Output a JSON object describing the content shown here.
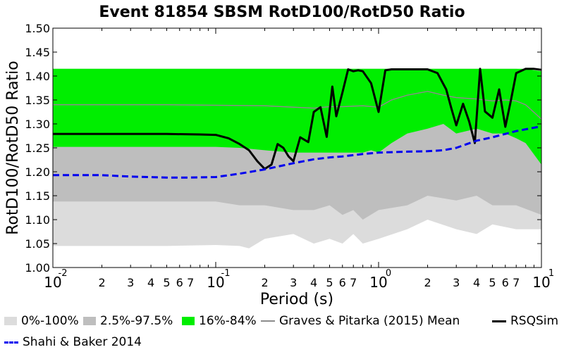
{
  "chart_data": {
    "type": "area",
    "title": "Event 81854 SBSM RotD100/RotD50 Ratio",
    "xlabel": "Period (s)",
    "ylabel": "RotD100/RotD50 Ratio",
    "xscale": "log",
    "xlim": [
      0.01,
      10
    ],
    "ylim": [
      1.0,
      1.5
    ],
    "yticks": [
      "1.00",
      "1.05",
      "1.10",
      "1.15",
      "1.20",
      "1.25",
      "1.30",
      "1.35",
      "1.40",
      "1.45",
      "1.50"
    ],
    "xtick_decades": [
      {
        "value": 0.01,
        "base": "10",
        "exp": "-2"
      },
      {
        "value": 0.1,
        "base": "10",
        "exp": "-1"
      },
      {
        "value": 1,
        "base": "10",
        "exp": "0"
      },
      {
        "value": 10,
        "base": "10",
        "exp": "1"
      }
    ],
    "xtick_minor_labels": [
      "2",
      "3",
      "4",
      "5",
      "6",
      "7"
    ],
    "grid": false,
    "legend_position": "bottom",
    "bands": [
      {
        "name": "0%-100%",
        "color": "#dcdcdc",
        "x": [
          0.01,
          0.05,
          0.1,
          0.14,
          0.16,
          0.2,
          0.3,
          0.4,
          0.5,
          0.6,
          0.7,
          0.8,
          1.0,
          1.5,
          2.0,
          3.0,
          4.0,
          5.0,
          7.0,
          10.0
        ],
        "lower": [
          1.045,
          1.045,
          1.047,
          1.045,
          1.04,
          1.06,
          1.07,
          1.05,
          1.06,
          1.05,
          1.07,
          1.05,
          1.06,
          1.08,
          1.1,
          1.08,
          1.07,
          1.09,
          1.08,
          1.08
        ],
        "upper": [
          1.415,
          1.415,
          1.415,
          1.415,
          1.415,
          1.415,
          1.415,
          1.415,
          1.415,
          1.415,
          1.415,
          1.415,
          1.415,
          1.415,
          1.415,
          1.415,
          1.415,
          1.415,
          1.415,
          1.41
        ]
      },
      {
        "name": "2.5%-97.5%",
        "color": "#bebebe",
        "x": [
          0.01,
          0.05,
          0.1,
          0.14,
          0.2,
          0.3,
          0.4,
          0.5,
          0.6,
          0.7,
          0.8,
          1.0,
          1.5,
          2.0,
          3.0,
          4.0,
          5.0,
          7.0,
          10.0
        ],
        "lower": [
          1.138,
          1.138,
          1.138,
          1.13,
          1.13,
          1.12,
          1.12,
          1.13,
          1.11,
          1.12,
          1.1,
          1.12,
          1.13,
          1.15,
          1.14,
          1.15,
          1.13,
          1.13,
          1.11
        ],
        "upper": [
          1.415,
          1.415,
          1.415,
          1.415,
          1.415,
          1.415,
          1.415,
          1.415,
          1.415,
          1.415,
          1.415,
          1.415,
          1.415,
          1.415,
          1.415,
          1.415,
          1.415,
          1.415,
          1.41
        ]
      },
      {
        "name": "16%-84%",
        "color": "#00ee00",
        "x": [
          0.01,
          0.05,
          0.1,
          0.14,
          0.2,
          0.3,
          0.4,
          0.5,
          0.6,
          0.7,
          0.8,
          0.9,
          1.0,
          1.2,
          1.5,
          2.0,
          2.5,
          3.0,
          4.0,
          5.0,
          6.0,
          7.0,
          8.0,
          10.0
        ],
        "lower": [
          1.252,
          1.252,
          1.252,
          1.25,
          1.245,
          1.24,
          1.24,
          1.24,
          1.24,
          1.24,
          1.24,
          1.245,
          1.24,
          1.26,
          1.28,
          1.29,
          1.3,
          1.28,
          1.29,
          1.28,
          1.28,
          1.27,
          1.26,
          1.215
        ],
        "upper": [
          1.415,
          1.415,
          1.415,
          1.415,
          1.415,
          1.415,
          1.415,
          1.415,
          1.415,
          1.415,
          1.415,
          1.415,
          1.415,
          1.415,
          1.415,
          1.415,
          1.415,
          1.415,
          1.415,
          1.415,
          1.415,
          1.415,
          1.415,
          1.41
        ]
      }
    ],
    "series": [
      {
        "name": "Graves & Pitarka (2015) Mean",
        "color": "#8c8c8c",
        "style": "solid",
        "x": [
          0.01,
          0.05,
          0.1,
          0.2,
          0.3,
          0.4,
          0.5,
          0.6,
          0.7,
          0.8,
          1.0,
          1.2,
          1.5,
          2.0,
          2.5,
          3.0,
          4.0,
          5.0,
          6.0,
          7.0,
          8.0,
          10.0
        ],
        "y": [
          1.34,
          1.34,
          1.339,
          1.338,
          1.335,
          1.333,
          1.336,
          1.336,
          1.337,
          1.338,
          1.335,
          1.35,
          1.36,
          1.368,
          1.36,
          1.355,
          1.352,
          1.348,
          1.35,
          1.348,
          1.34,
          1.31
        ]
      },
      {
        "name": "RSQSim",
        "color": "#000000",
        "style": "solid",
        "x": [
          0.01,
          0.05,
          0.08,
          0.1,
          0.12,
          0.14,
          0.16,
          0.18,
          0.2,
          0.22,
          0.24,
          0.26,
          0.28,
          0.3,
          0.33,
          0.37,
          0.4,
          0.44,
          0.48,
          0.52,
          0.55,
          0.6,
          0.65,
          0.7,
          0.75,
          0.8,
          0.9,
          1.0,
          1.1,
          1.2,
          1.3,
          1.5,
          2.0,
          2.3,
          2.6,
          2.8,
          3.0,
          3.3,
          3.6,
          3.9,
          4.2,
          4.5,
          5.0,
          5.5,
          6.0,
          6.5,
          7.0,
          8.0,
          9.0,
          10.0
        ],
        "y": [
          1.279,
          1.279,
          1.278,
          1.277,
          1.27,
          1.258,
          1.245,
          1.222,
          1.206,
          1.215,
          1.258,
          1.25,
          1.232,
          1.222,
          1.272,
          1.262,
          1.325,
          1.335,
          1.273,
          1.378,
          1.316,
          1.366,
          1.414,
          1.41,
          1.412,
          1.41,
          1.385,
          1.325,
          1.412,
          1.414,
          1.414,
          1.414,
          1.414,
          1.406,
          1.372,
          1.332,
          1.297,
          1.342,
          1.305,
          1.26,
          1.415,
          1.326,
          1.313,
          1.372,
          1.294,
          1.35,
          1.406,
          1.415,
          1.415,
          1.413
        ]
      },
      {
        "name": "Shahi & Baker 2014",
        "color": "#0000ee",
        "style": "dashed",
        "x": [
          0.01,
          0.02,
          0.03,
          0.05,
          0.07,
          0.1,
          0.14,
          0.2,
          0.3,
          0.4,
          0.5,
          0.6,
          0.8,
          1.0,
          1.5,
          2.0,
          2.5,
          3.0,
          4.0,
          5.0,
          7.0,
          10.0
        ],
        "y": [
          1.193,
          1.193,
          1.19,
          1.188,
          1.188,
          1.189,
          1.196,
          1.205,
          1.218,
          1.226,
          1.23,
          1.232,
          1.237,
          1.24,
          1.242,
          1.243,
          1.245,
          1.25,
          1.265,
          1.272,
          1.285,
          1.295
        ]
      }
    ]
  },
  "legend": {
    "items": [
      {
        "label": "0%-100%",
        "kind": "box",
        "color": "#dcdcdc"
      },
      {
        "label": "2.5%-97.5%",
        "kind": "box",
        "color": "#bebebe"
      },
      {
        "label": "16%-84%",
        "kind": "box",
        "color": "#00ee00"
      },
      {
        "label": "Graves & Pitarka (2015) Mean",
        "kind": "line",
        "color": "#8c8c8c"
      },
      {
        "label": "RSQSim",
        "kind": "line",
        "color": "#000000"
      },
      {
        "label": "Shahi & Baker 2014",
        "kind": "dashed",
        "color": "#0000ee"
      }
    ]
  }
}
